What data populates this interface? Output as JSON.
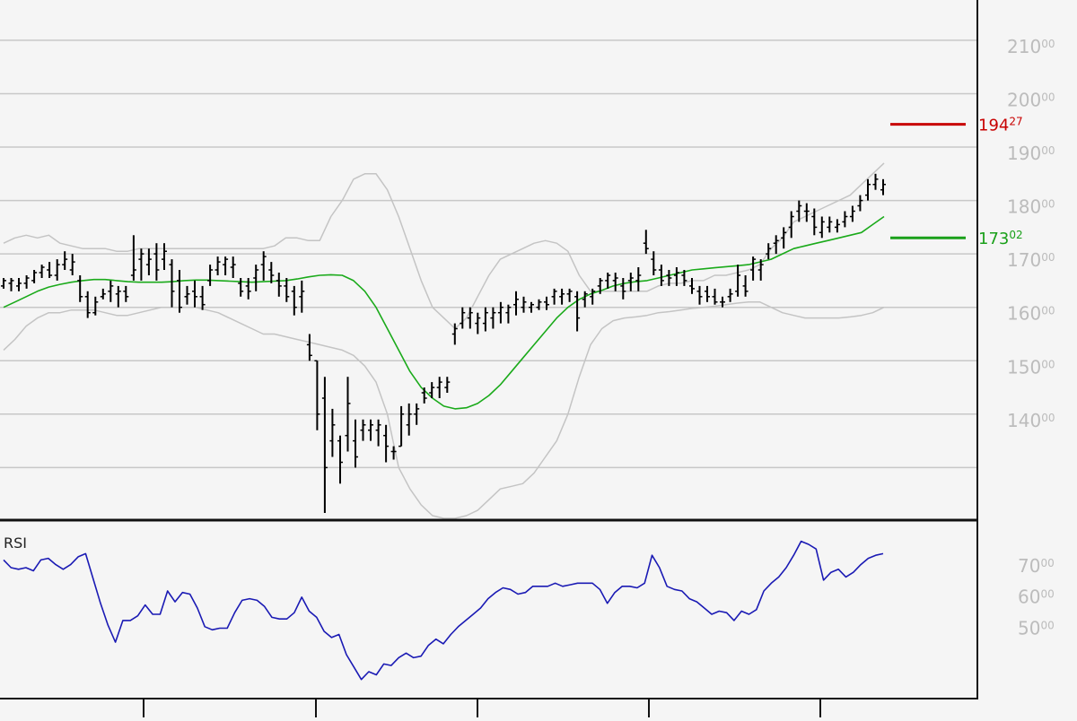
{
  "chart_data": [
    {
      "type": "ohlc",
      "panel": "price",
      "ylim": [
        12050,
        21720
      ],
      "y_ticks": [
        {
          "value": 14000,
          "int": "140",
          "dec": "00"
        },
        {
          "value": 15000,
          "int": "150",
          "dec": "00"
        },
        {
          "value": 16000,
          "int": "160",
          "dec": "00"
        },
        {
          "value": 17000,
          "int": "170",
          "dec": "00"
        },
        {
          "value": 18000,
          "int": "180",
          "dec": "00"
        },
        {
          "value": 19000,
          "int": "190",
          "dec": "00"
        },
        {
          "value": 20000,
          "int": "200",
          "dec": "00"
        },
        {
          "value": 21000,
          "int": "210",
          "dec": "00"
        }
      ],
      "markers": [
        {
          "value": 19427,
          "int": "194",
          "dec": "27",
          "color": "#c80000"
        },
        {
          "value": 17302,
          "int": "173",
          "dec": "02",
          "color": "#1aa01a"
        }
      ],
      "moving_average": [
        16000,
        16100,
        16200,
        16300,
        16380,
        16430,
        16470,
        16500,
        16520,
        16520,
        16500,
        16480,
        16470,
        16470,
        16470,
        16480,
        16500,
        16510,
        16510,
        16500,
        16490,
        16480,
        16470,
        16480,
        16490,
        16500,
        16530,
        16570,
        16600,
        16610,
        16600,
        16500,
        16300,
        16000,
        15600,
        15200,
        14800,
        14500,
        14300,
        14150,
        14100,
        14120,
        14200,
        14350,
        14550,
        14800,
        15050,
        15300,
        15550,
        15800,
        16000,
        16150,
        16250,
        16320,
        16400,
        16450,
        16480,
        16500,
        16550,
        16600,
        16650,
        16700,
        16720,
        16740,
        16760,
        16780,
        16800,
        16850,
        16900,
        17000,
        17100,
        17150,
        17200,
        17250,
        17300,
        17350,
        17400,
        17550,
        17700
      ],
      "upper_band": [
        17200,
        17300,
        17350,
        17300,
        17350,
        17200,
        17150,
        17100,
        17100,
        17100,
        17050,
        17050,
        17100,
        17100,
        17100,
        17100,
        17100,
        17100,
        17100,
        17100,
        17100,
        17100,
        17100,
        17100,
        17150,
        17300,
        17300,
        17250,
        17250,
        17700,
        18000,
        18400,
        18500,
        18500,
        18200,
        17700,
        17100,
        16500,
        16000,
        15800,
        15600,
        15800,
        16200,
        16600,
        16900,
        17000,
        17100,
        17200,
        17250,
        17200,
        17050,
        16600,
        16300,
        16300,
        16300,
        16300,
        16300,
        16300,
        16400,
        16450,
        16450,
        16500,
        16500,
        16600,
        16600,
        16650,
        16700,
        16800,
        17100,
        17300,
        17600,
        17700,
        17800,
        17900,
        18000,
        18100,
        18300,
        18500,
        18700
      ],
      "lower_band": [
        15200,
        15400,
        15650,
        15800,
        15900,
        15900,
        15950,
        15950,
        15950,
        15900,
        15850,
        15850,
        15900,
        15950,
        16000,
        16000,
        16000,
        16000,
        15950,
        15900,
        15800,
        15700,
        15600,
        15500,
        15500,
        15450,
        15400,
        15350,
        15300,
        15250,
        15200,
        15100,
        14900,
        14600,
        14000,
        13000,
        12600,
        12300,
        12100,
        12050,
        12050,
        12100,
        12200,
        12400,
        12600,
        12650,
        12700,
        12900,
        13200,
        13500,
        14000,
        14700,
        15300,
        15600,
        15750,
        15800,
        15820,
        15850,
        15900,
        15920,
        15950,
        15980,
        16000,
        16020,
        16050,
        16080,
        16100,
        16100,
        16000,
        15900,
        15850,
        15800,
        15800,
        15800,
        15800,
        15820,
        15850,
        15900,
        16000
      ],
      "bars": [
        {
          "o": 16400,
          "h": 16550,
          "l": 16350,
          "c": 16500
        },
        {
          "o": 16450,
          "h": 16550,
          "l": 16300,
          "c": 16500
        },
        {
          "o": 16400,
          "h": 16550,
          "l": 16300,
          "c": 16450
        },
        {
          "o": 16450,
          "h": 16600,
          "l": 16350,
          "c": 16550
        },
        {
          "o": 16500,
          "h": 16700,
          "l": 16450,
          "c": 16650
        },
        {
          "o": 16650,
          "h": 16800,
          "l": 16550,
          "c": 16750
        },
        {
          "o": 16700,
          "h": 16850,
          "l": 16550,
          "c": 16600
        },
        {
          "o": 16600,
          "h": 16900,
          "l": 16500,
          "c": 16800
        },
        {
          "o": 16800,
          "h": 17050,
          "l": 16700,
          "c": 16900
        },
        {
          "o": 16700,
          "h": 17000,
          "l": 16600,
          "c": 16850
        },
        {
          "o": 16500,
          "h": 16600,
          "l": 16100,
          "c": 16200
        },
        {
          "o": 16200,
          "h": 16300,
          "l": 15800,
          "c": 15900
        },
        {
          "o": 15900,
          "h": 16200,
          "l": 15850,
          "c": 16100
        },
        {
          "o": 16200,
          "h": 16350,
          "l": 16150,
          "c": 16250
        },
        {
          "o": 16300,
          "h": 16500,
          "l": 16100,
          "c": 16400
        },
        {
          "o": 16250,
          "h": 16400,
          "l": 16000,
          "c": 16300
        },
        {
          "o": 16300,
          "h": 16400,
          "l": 16100,
          "c": 16200
        },
        {
          "o": 16600,
          "h": 17350,
          "l": 16500,
          "c": 16700
        },
        {
          "o": 16900,
          "h": 17100,
          "l": 16500,
          "c": 17000
        },
        {
          "o": 16800,
          "h": 17100,
          "l": 16600,
          "c": 16900
        },
        {
          "o": 17000,
          "h": 17200,
          "l": 16500,
          "c": 16700
        },
        {
          "o": 16900,
          "h": 17200,
          "l": 16700,
          "c": 17050
        },
        {
          "o": 16800,
          "h": 16900,
          "l": 16000,
          "c": 16300
        },
        {
          "o": 16500,
          "h": 16700,
          "l": 15900,
          "c": 16000
        },
        {
          "o": 16200,
          "h": 16400,
          "l": 16050,
          "c": 16250
        },
        {
          "o": 16300,
          "h": 16500,
          "l": 16000,
          "c": 16200
        },
        {
          "o": 16200,
          "h": 16400,
          "l": 15950,
          "c": 16050
        },
        {
          "o": 16500,
          "h": 16800,
          "l": 16400,
          "c": 16700
        },
        {
          "o": 16700,
          "h": 16950,
          "l": 16600,
          "c": 16850
        },
        {
          "o": 16800,
          "h": 16950,
          "l": 16600,
          "c": 16900
        },
        {
          "o": 16750,
          "h": 16950,
          "l": 16550,
          "c": 16800
        },
        {
          "o": 16450,
          "h": 16550,
          "l": 16200,
          "c": 16300
        },
        {
          "o": 16400,
          "h": 16550,
          "l": 16150,
          "c": 16300
        },
        {
          "o": 16550,
          "h": 16800,
          "l": 16300,
          "c": 16700
        },
        {
          "o": 16800,
          "h": 17050,
          "l": 16500,
          "c": 16950
        },
        {
          "o": 16700,
          "h": 16850,
          "l": 16450,
          "c": 16600
        },
        {
          "o": 16500,
          "h": 16650,
          "l": 16200,
          "c": 16400
        },
        {
          "o": 16400,
          "h": 16550,
          "l": 16100,
          "c": 16200
        },
        {
          "o": 16300,
          "h": 16400,
          "l": 15850,
          "c": 16000
        },
        {
          "o": 16200,
          "h": 16500,
          "l": 15900,
          "c": 16300
        },
        {
          "o": 15300,
          "h": 15500,
          "l": 15000,
          "c": 15100
        },
        {
          "o": 15000,
          "h": 15000,
          "l": 13700,
          "c": 14000
        },
        {
          "o": 14300,
          "h": 14700,
          "l": 12150,
          "c": 13000
        },
        {
          "o": 13500,
          "h": 14100,
          "l": 13200,
          "c": 13800
        },
        {
          "o": 13500,
          "h": 13600,
          "l": 12700,
          "c": 13100
        },
        {
          "o": 13600,
          "h": 14700,
          "l": 13300,
          "c": 14200
        },
        {
          "o": 13500,
          "h": 13900,
          "l": 13000,
          "c": 13200
        },
        {
          "o": 13700,
          "h": 13900,
          "l": 13500,
          "c": 13800
        },
        {
          "o": 13700,
          "h": 13900,
          "l": 13500,
          "c": 13800
        },
        {
          "o": 13700,
          "h": 13900,
          "l": 13400,
          "c": 13800
        },
        {
          "o": 13600,
          "h": 13800,
          "l": 13100,
          "c": 13400
        },
        {
          "o": 13300,
          "h": 13400,
          "l": 13150,
          "c": 13300
        },
        {
          "o": 13400,
          "h": 14150,
          "l": 13400,
          "c": 14000
        },
        {
          "o": 13800,
          "h": 14200,
          "l": 13600,
          "c": 14000
        },
        {
          "o": 14000,
          "h": 14200,
          "l": 13800,
          "c": 14100
        },
        {
          "o": 14400,
          "h": 14500,
          "l": 14200,
          "c": 14300
        },
        {
          "o": 14400,
          "h": 14600,
          "l": 14300,
          "c": 14500
        },
        {
          "o": 14500,
          "h": 14700,
          "l": 14300,
          "c": 14600
        },
        {
          "o": 14500,
          "h": 14700,
          "l": 14400,
          "c": 14600
        },
        {
          "o": 15500,
          "h": 15700,
          "l": 15300,
          "c": 15600
        },
        {
          "o": 15700,
          "h": 16000,
          "l": 15600,
          "c": 15900
        },
        {
          "o": 15800,
          "h": 16000,
          "l": 15600,
          "c": 15900
        },
        {
          "o": 15700,
          "h": 15900,
          "l": 15500,
          "c": 15800
        },
        {
          "o": 15700,
          "h": 16000,
          "l": 15550,
          "c": 15900
        },
        {
          "o": 15800,
          "h": 16000,
          "l": 15600,
          "c": 15900
        },
        {
          "o": 15900,
          "h": 16100,
          "l": 15700,
          "c": 16000
        },
        {
          "o": 15900,
          "h": 16050,
          "l": 15700,
          "c": 16000
        },
        {
          "o": 16050,
          "h": 16300,
          "l": 15850,
          "c": 16150
        },
        {
          "o": 16000,
          "h": 16200,
          "l": 15900,
          "c": 16100
        },
        {
          "o": 16000,
          "h": 16100,
          "l": 15900,
          "c": 16050
        },
        {
          "o": 16000,
          "h": 16150,
          "l": 15950,
          "c": 16100
        },
        {
          "o": 16100,
          "h": 16200,
          "l": 15950,
          "c": 16050
        },
        {
          "o": 16200,
          "h": 16350,
          "l": 16050,
          "c": 16300
        },
        {
          "o": 16200,
          "h": 16350,
          "l": 16050,
          "c": 16250
        },
        {
          "o": 16250,
          "h": 16350,
          "l": 16100,
          "c": 16300
        },
        {
          "o": 16200,
          "h": 16300,
          "l": 15550,
          "c": 15800
        },
        {
          "o": 16150,
          "h": 16300,
          "l": 16000,
          "c": 16250
        },
        {
          "o": 16200,
          "h": 16350,
          "l": 16050,
          "c": 16300
        },
        {
          "o": 16400,
          "h": 16550,
          "l": 16250,
          "c": 16500
        },
        {
          "o": 16500,
          "h": 16650,
          "l": 16350,
          "c": 16600
        },
        {
          "o": 16500,
          "h": 16650,
          "l": 16300,
          "c": 16550
        },
        {
          "o": 16400,
          "h": 16550,
          "l": 16150,
          "c": 16300
        },
        {
          "o": 16500,
          "h": 16650,
          "l": 16300,
          "c": 16550
        },
        {
          "o": 16500,
          "h": 16750,
          "l": 16300,
          "c": 16600
        },
        {
          "o": 17200,
          "h": 17450,
          "l": 17000,
          "c": 17100
        },
        {
          "o": 16900,
          "h": 17050,
          "l": 16600,
          "c": 16700
        },
        {
          "o": 16700,
          "h": 16800,
          "l": 16400,
          "c": 16500
        },
        {
          "o": 16600,
          "h": 16700,
          "l": 16400,
          "c": 16550
        },
        {
          "o": 16600,
          "h": 16750,
          "l": 16400,
          "c": 16650
        },
        {
          "o": 16600,
          "h": 16700,
          "l": 16400,
          "c": 16500
        },
        {
          "o": 16400,
          "h": 16550,
          "l": 16250,
          "c": 16350
        },
        {
          "o": 16300,
          "h": 16400,
          "l": 16050,
          "c": 16200
        },
        {
          "o": 16300,
          "h": 16400,
          "l": 16100,
          "c": 16200
        },
        {
          "o": 16200,
          "h": 16350,
          "l": 16050,
          "c": 16100
        },
        {
          "o": 16100,
          "h": 16200,
          "l": 16000,
          "c": 16100
        },
        {
          "o": 16200,
          "h": 16350,
          "l": 16100,
          "c": 16250
        },
        {
          "o": 16300,
          "h": 16800,
          "l": 16200,
          "c": 16600
        },
        {
          "o": 16400,
          "h": 16600,
          "l": 16200,
          "c": 16300
        },
        {
          "o": 16700,
          "h": 16950,
          "l": 16500,
          "c": 16900
        },
        {
          "o": 16700,
          "h": 16900,
          "l": 16500,
          "c": 16800
        },
        {
          "o": 17000,
          "h": 17200,
          "l": 16900,
          "c": 17100
        },
        {
          "o": 17200,
          "h": 17350,
          "l": 17000,
          "c": 17250
        },
        {
          "o": 17300,
          "h": 17500,
          "l": 17100,
          "c": 17400
        },
        {
          "o": 17500,
          "h": 17800,
          "l": 17300,
          "c": 17700
        },
        {
          "o": 17800,
          "h": 18000,
          "l": 17600,
          "c": 17900
        },
        {
          "o": 17800,
          "h": 17950,
          "l": 17600,
          "c": 17800
        },
        {
          "o": 17700,
          "h": 17850,
          "l": 17350,
          "c": 17500
        },
        {
          "o": 17400,
          "h": 17700,
          "l": 17300,
          "c": 17600
        },
        {
          "o": 17500,
          "h": 17700,
          "l": 17400,
          "c": 17600
        },
        {
          "o": 17500,
          "h": 17650,
          "l": 17400,
          "c": 17550
        },
        {
          "o": 17600,
          "h": 17800,
          "l": 17500,
          "c": 17700
        },
        {
          "o": 17700,
          "h": 17900,
          "l": 17600,
          "c": 17800
        },
        {
          "o": 17900,
          "h": 18100,
          "l": 17800,
          "c": 18000
        },
        {
          "o": 18100,
          "h": 18400,
          "l": 18000,
          "c": 18300
        },
        {
          "o": 18300,
          "h": 18500,
          "l": 18200,
          "c": 18400
        },
        {
          "o": 18200,
          "h": 18400,
          "l": 18100,
          "c": 18300
        }
      ]
    },
    {
      "type": "line",
      "panel": "indicator",
      "label": "RSI",
      "ylim": [
        27,
        81
      ],
      "y_ticks": [
        {
          "value": 50,
          "int": "50",
          "dec": "00"
        },
        {
          "value": 60,
          "int": "60",
          "dec": "00"
        },
        {
          "value": 70,
          "int": "70",
          "dec": "00"
        }
      ],
      "color": "#1a1ab4",
      "values": [
        70.5,
        68,
        67.5,
        68,
        67,
        70.5,
        71,
        69,
        67.5,
        69,
        71.5,
        72.5,
        64.5,
        56.5,
        49.5,
        44,
        51,
        51,
        52.5,
        56,
        53,
        53,
        60.5,
        57,
        60,
        59.5,
        55,
        49,
        48,
        48.5,
        48.5,
        53.5,
        57.5,
        58,
        57.5,
        55.5,
        52,
        51.5,
        51.5,
        53.5,
        58.5,
        54,
        52,
        47.5,
        45.5,
        46.5,
        40,
        36,
        32,
        34.5,
        33.5,
        37,
        36.5,
        39,
        40.5,
        39,
        39.5,
        43,
        45,
        43.5,
        46.5,
        49,
        51,
        53,
        55,
        58,
        60,
        61.5,
        61,
        59.5,
        60,
        62,
        62,
        62,
        63,
        62,
        62.5,
        63,
        63,
        63,
        61,
        56.5,
        60,
        62,
        62,
        61.5,
        63,
        72,
        68,
        62,
        61,
        60.5,
        58,
        57,
        55,
        53,
        54,
        53.5,
        51,
        54,
        53,
        54.5,
        60.5,
        63,
        65,
        68,
        72,
        76.5,
        75.5,
        74,
        64,
        66.5,
        67.5,
        65,
        66.5,
        69,
        71,
        72,
        72.5
      ]
    }
  ]
}
